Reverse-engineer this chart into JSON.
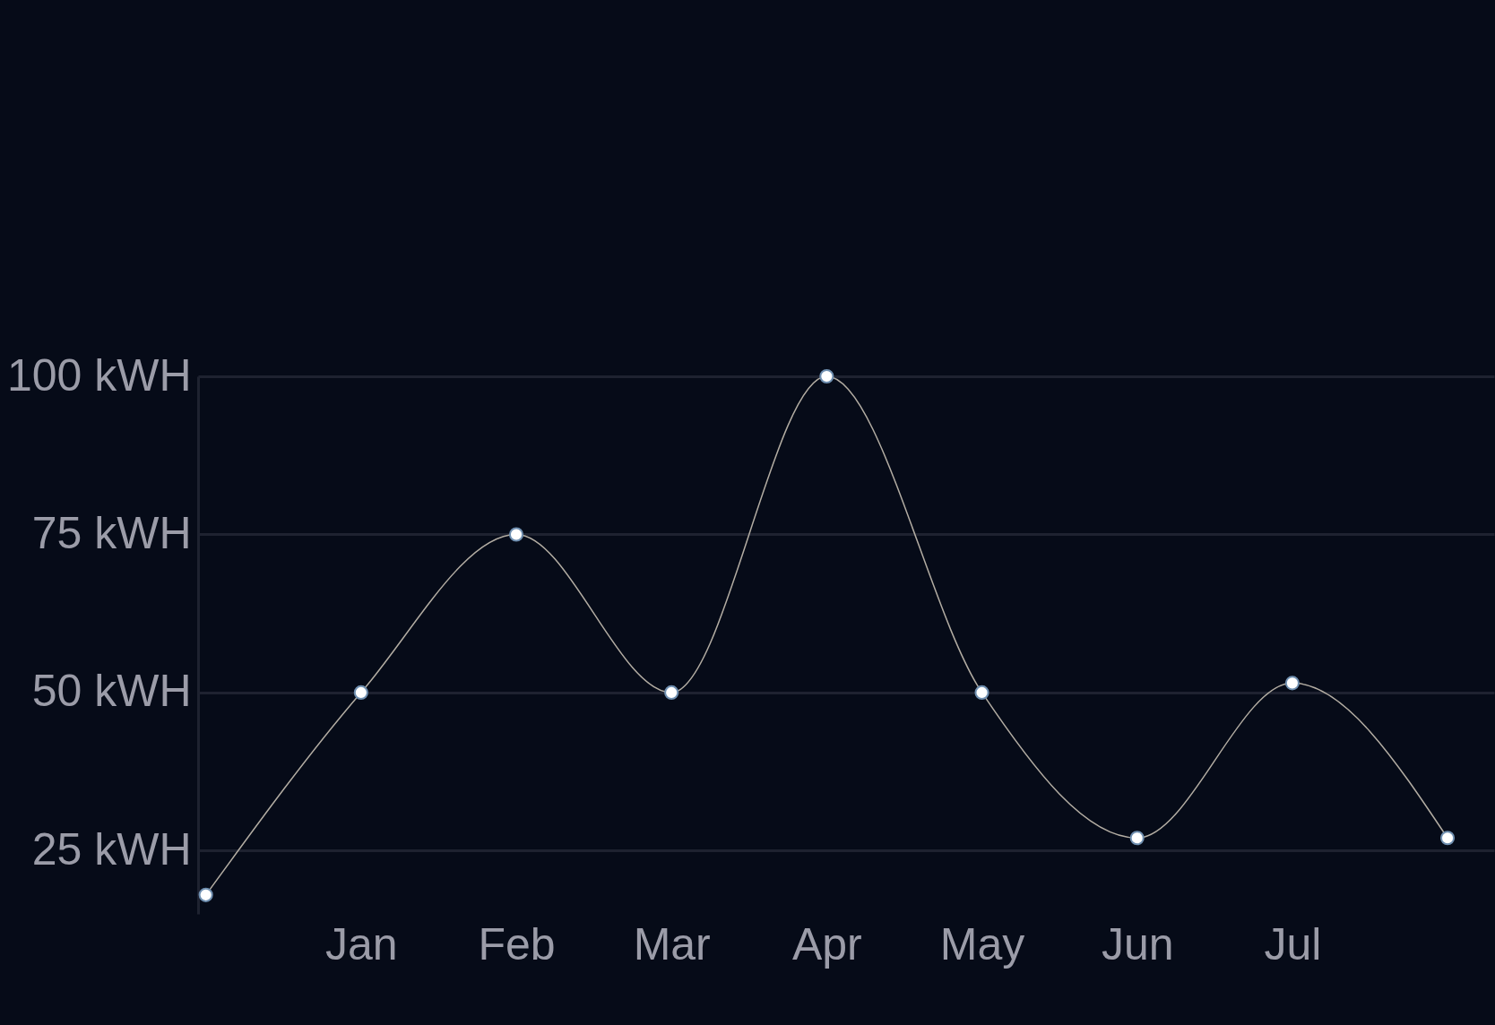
{
  "chart_data": {
    "type": "line",
    "categories": [
      null,
      "Jan",
      "Feb",
      "Mar",
      "Apr",
      "May",
      "Jun",
      "Jul",
      null
    ],
    "series": [
      {
        "color": "#b3ada3",
        "values": [
          18,
          50,
          75,
          50,
          100,
          50,
          27,
          51.5,
          27
        ]
      }
    ],
    "yticks": [
      {
        "value": 25,
        "label": "25 kWH"
      },
      {
        "value": 50,
        "label": "50 kWH"
      },
      {
        "value": 75,
        "label": "75 kWH"
      },
      {
        "value": 100,
        "label": "100 kWH"
      }
    ],
    "ylim": [
      15,
      100
    ],
    "grid": "y",
    "marker": "circle",
    "line_style": "solid",
    "legend": false
  }
}
